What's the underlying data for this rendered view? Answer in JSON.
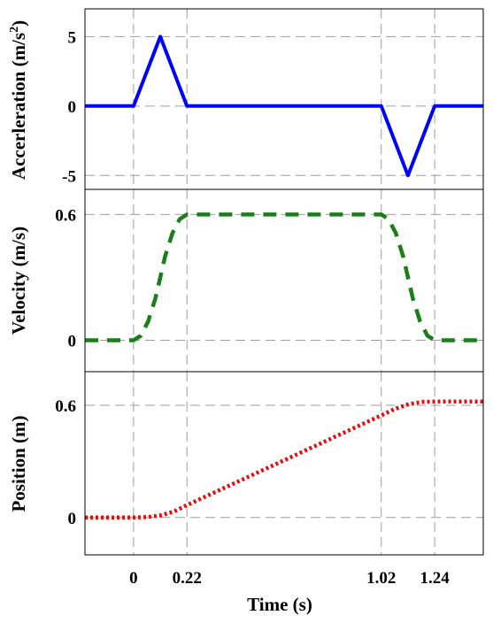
{
  "chart_data": [
    {
      "type": "line",
      "ylabel": "Accerleration",
      "ylabel_unit": "(m/s",
      "ylabel_sup": "2",
      "ylabel_close": ")",
      "xlim": [
        -0.2,
        1.44
      ],
      "ylim": [
        -6,
        7
      ],
      "yticks": [
        5,
        0,
        -5
      ],
      "ytick_labels": [
        "5",
        "0",
        "-5"
      ],
      "xgrid": [
        0,
        0.22,
        1.02,
        1.24
      ],
      "grid": true,
      "series": [
        {
          "color": "#0000ff",
          "linestyle": "solid",
          "x": [
            -0.2,
            0,
            0.11,
            0.22,
            1.02,
            1.13,
            1.24,
            1.44
          ],
          "y": [
            0,
            0,
            5,
            0,
            0,
            -5,
            0,
            0
          ]
        }
      ]
    },
    {
      "type": "line",
      "ylabel": "Velocity (m/s)",
      "xlim": [
        -0.2,
        1.44
      ],
      "ylim": [
        -0.15,
        0.72
      ],
      "yticks": [
        0.6,
        0
      ],
      "ytick_labels": [
        "0.6",
        "0"
      ],
      "xgrid": [
        0,
        0.22,
        1.02,
        1.24
      ],
      "grid": true,
      "series": [
        {
          "color": "#1a7f1a",
          "linestyle": "dashed",
          "x": [
            -0.2,
            0,
            0.03,
            0.06,
            0.09,
            0.11,
            0.13,
            0.16,
            0.19,
            0.22,
            1.02,
            1.05,
            1.08,
            1.11,
            1.13,
            1.15,
            1.18,
            1.21,
            1.24,
            1.44
          ],
          "y": [
            0,
            0,
            0.022,
            0.089,
            0.2,
            0.3,
            0.4,
            0.511,
            0.578,
            0.6,
            0.6,
            0.578,
            0.511,
            0.4,
            0.3,
            0.2,
            0.089,
            0.022,
            0,
            0
          ]
        }
      ]
    },
    {
      "type": "line",
      "ylabel": "Position (m)",
      "xlabel": "Time (s)",
      "xlim": [
        -0.2,
        1.44
      ],
      "ylim": [
        -0.2,
        0.78
      ],
      "yticks": [
        0.6,
        0
      ],
      "ytick_labels": [
        "0.6",
        "0"
      ],
      "xticks": [
        0,
        0.22,
        1.02,
        1.24
      ],
      "xtick_labels": [
        "0",
        "0.22",
        "1.02",
        "1.24"
      ],
      "xgrid": [
        0,
        0.22,
        1.02,
        1.24
      ],
      "grid": true,
      "series": [
        {
          "color": "#e01010",
          "linestyle": "dotted",
          "x": [
            -0.2,
            0,
            0.055,
            0.11,
            0.165,
            0.22,
            0.4,
            0.6,
            0.8,
            1.02,
            1.075,
            1.13,
            1.185,
            1.24,
            1.44
          ],
          "y": [
            0,
            0,
            0.002,
            0.011,
            0.031,
            0.066,
            0.174,
            0.294,
            0.414,
            0.546,
            0.58,
            0.605,
            0.618,
            0.62,
            0.62
          ]
        }
      ]
    }
  ]
}
